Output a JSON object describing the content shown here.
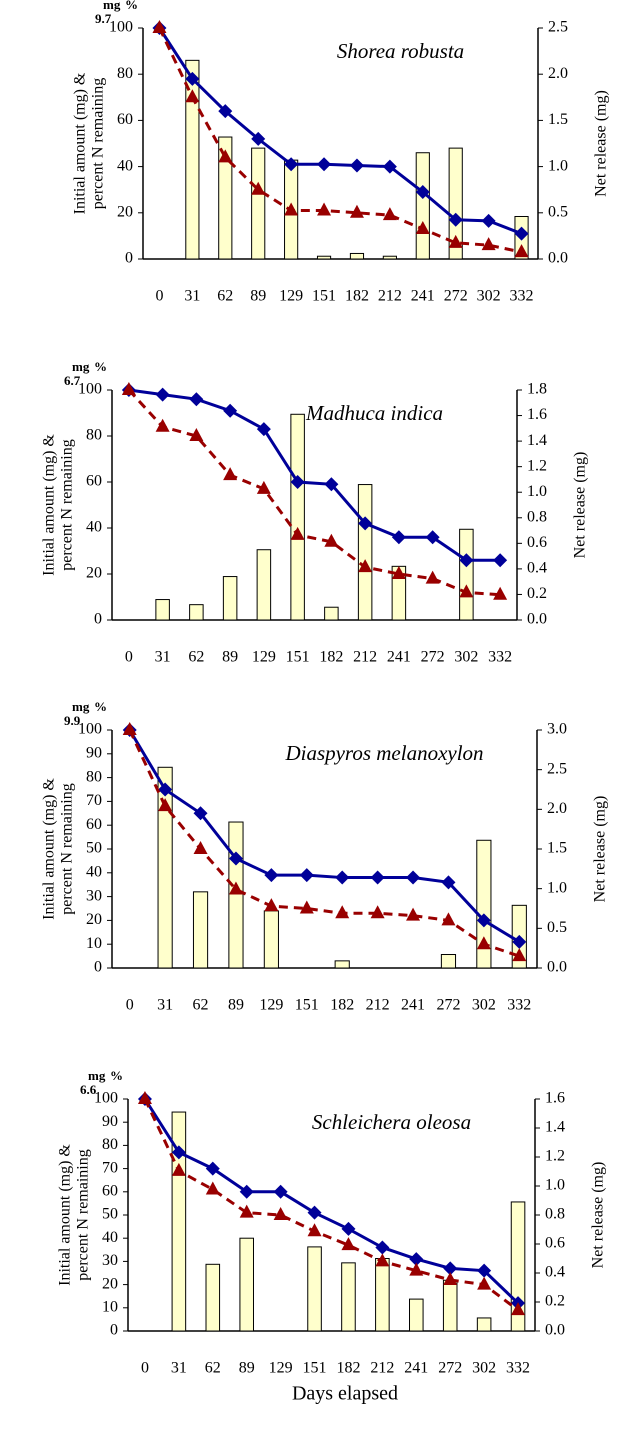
{
  "chart_data": [
    {
      "type": "bar-line",
      "title": "Shorea robusta",
      "annotations": [
        "mg",
        "%",
        "9.7"
      ],
      "y_label": [
        "Initial amount (mg) &",
        "percent N remaining"
      ],
      "y2_label": "Net release (mg)",
      "categories": [
        "0",
        "31",
        "62",
        "89",
        "129",
        "151",
        "182",
        "212",
        "241",
        "272",
        "302",
        "332"
      ],
      "series": [
        {
          "type": "bar",
          "axis": "y2",
          "color": "#ffffcc",
          "values": [
            0,
            2.15,
            1.32,
            1.2,
            1.07,
            0.03,
            0.06,
            0.03,
            1.15,
            1.2,
            0,
            0.46
          ]
        },
        {
          "type": "line",
          "color": "#000099",
          "marker": "diamond",
          "values": [
            100,
            78,
            64,
            52,
            41,
            41,
            40.5,
            40,
            29,
            17,
            16.5,
            11
          ]
        },
        {
          "type": "line",
          "color": "#990000",
          "marker": "triangle",
          "dashed": true,
          "values": [
            100,
            70,
            44,
            30,
            21,
            21,
            20,
            19,
            13,
            7,
            6,
            3
          ]
        }
      ],
      "ylim": [
        0,
        100
      ],
      "yticks": [
        0,
        20,
        40,
        60,
        80,
        100
      ],
      "y2lim": [
        0,
        2.5
      ],
      "y2ticks": [
        {
          "value": 0,
          "label": "0.0"
        },
        0.5,
        {
          "value": 1,
          "label": "1.0"
        },
        1.5,
        {
          "value": 2,
          "label": "2.0"
        },
        2.5
      ]
    },
    {
      "type": "bar-line",
      "title": "Madhuca indica",
      "annotations": [
        "mg",
        "%",
        "6.7"
      ],
      "y_label": [
        "Initial amount (mg) &",
        "percent N remaining"
      ],
      "y2_label": "Net release (mg)",
      "categories": [
        "0",
        "31",
        "62",
        "89",
        "129",
        "151",
        "182",
        "212",
        "241",
        "272",
        "302",
        "332"
      ],
      "series": [
        {
          "type": "bar",
          "axis": "y2",
          "color": "#ffffcc",
          "values": [
            0,
            0.16,
            0.12,
            0.34,
            0.55,
            1.61,
            0.1,
            1.06,
            0.42,
            0,
            0.71,
            0
          ]
        },
        {
          "type": "line",
          "color": "#000099",
          "marker": "diamond",
          "values": [
            100,
            98,
            96,
            91,
            83,
            60,
            59,
            42,
            36,
            36,
            26,
            26
          ]
        },
        {
          "type": "line",
          "color": "#990000",
          "marker": "triangle",
          "dashed": true,
          "values": [
            100,
            84,
            80,
            63,
            57,
            37,
            34,
            23,
            20,
            18,
            12,
            11
          ]
        }
      ],
      "ylim": [
        0,
        100
      ],
      "yticks": [
        0,
        20,
        40,
        60,
        80,
        100
      ],
      "y2lim": [
        0,
        1.8
      ],
      "y2ticks": [
        {
          "value": 0,
          "label": "0.0"
        },
        0.2,
        0.4,
        0.6,
        0.8,
        {
          "value": 1,
          "label": "1.0"
        },
        1.2,
        1.4,
        1.6,
        1.8
      ]
    },
    {
      "type": "bar-line",
      "title": "Diaspyros melanoxylon",
      "annotations": [
        "mg",
        "%",
        "9.9"
      ],
      "y_label": [
        "Initial amount (mg) &",
        "percent N remaining"
      ],
      "y2_label": "Net release (mg)",
      "categories": [
        "0",
        "31",
        "62",
        "89",
        "129",
        "151",
        "182",
        "212",
        "241",
        "272",
        "302",
        "332"
      ],
      "series": [
        {
          "type": "bar",
          "axis": "y2",
          "color": "#ffffcc",
          "values": [
            0,
            2.53,
            0.96,
            1.84,
            0.72,
            0,
            0.09,
            0,
            0,
            0.17,
            1.61,
            0.79
          ]
        },
        {
          "type": "line",
          "color": "#000099",
          "marker": "diamond",
          "values": [
            100,
            75,
            65,
            46,
            39,
            39,
            38,
            38,
            38,
            36,
            20,
            11
          ]
        },
        {
          "type": "line",
          "color": "#990000",
          "marker": "triangle",
          "dashed": true,
          "values": [
            100,
            68,
            50,
            33,
            26,
            25,
            23,
            23,
            22,
            20,
            10,
            5
          ]
        }
      ],
      "ylim": [
        0,
        100
      ],
      "yticks": [
        0,
        10,
        20,
        30,
        40,
        50,
        60,
        70,
        80,
        90,
        100
      ],
      "y2lim": [
        0,
        3
      ],
      "y2ticks": [
        {
          "value": 0,
          "label": "0.0"
        },
        0.5,
        {
          "value": 1,
          "label": "1.0"
        },
        1.5,
        {
          "value": 2,
          "label": "2.0"
        },
        2.5,
        {
          "value": 3,
          "label": "3.0"
        }
      ]
    },
    {
      "type": "bar-line",
      "title": "Schleichera oleosa",
      "annotations": [
        "mg",
        "%",
        "6.6"
      ],
      "y_label": [
        "Initial amount (mg) &",
        "percent N remaining"
      ],
      "y2_label": "Net release (mg)",
      "categories": [
        "0",
        "31",
        "62",
        "89",
        "129",
        "151",
        "182",
        "212",
        "241",
        "272",
        "302",
        "332"
      ],
      "series": [
        {
          "type": "bar",
          "axis": "y2",
          "color": "#ffffcc",
          "values": [
            0,
            1.51,
            0.46,
            0.64,
            0,
            0.58,
            0.47,
            0.5,
            0.22,
            0.35,
            0.09,
            0.89
          ]
        },
        {
          "type": "line",
          "color": "#000099",
          "marker": "diamond",
          "values": [
            100,
            77,
            70,
            60,
            60,
            51,
            44,
            36,
            31,
            27,
            26,
            12
          ]
        },
        {
          "type": "line",
          "color": "#990000",
          "marker": "triangle",
          "dashed": true,
          "values": [
            100,
            69,
            61,
            51,
            50,
            43,
            37,
            30,
            26,
            22,
            20,
            9
          ]
        }
      ],
      "ylim": [
        0,
        100
      ],
      "yticks": [
        0,
        10,
        20,
        30,
        40,
        50,
        60,
        70,
        80,
        90,
        100
      ],
      "y2lim": [
        0,
        1.6
      ],
      "y2ticks": [
        {
          "value": 0,
          "label": "0.0"
        },
        0.2,
        0.4,
        0.6,
        0.8,
        {
          "value": 1,
          "label": "1.0"
        },
        1.2,
        1.4,
        1.6
      ]
    }
  ],
  "x_label": "Days elapsed"
}
